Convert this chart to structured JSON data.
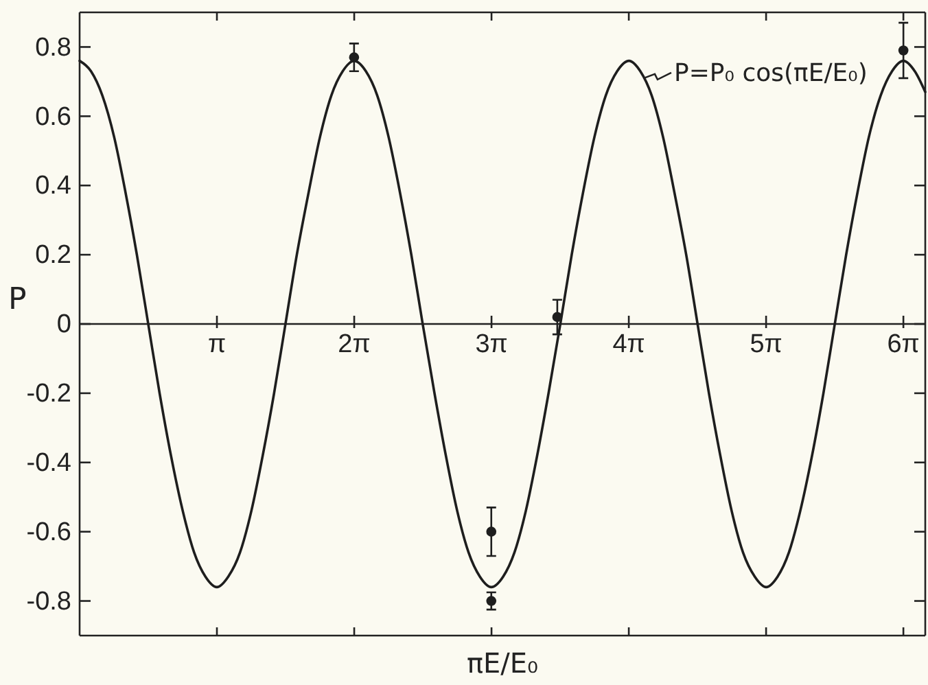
{
  "chart_data": {
    "type": "line",
    "xlabel": "πE/E₀",
    "ylabel": "P",
    "xlim": [
      0,
      19.35
    ],
    "ylim": [
      -0.9,
      0.9
    ],
    "xticks": [
      {
        "value": 3.1416,
        "label": "π"
      },
      {
        "value": 6.2832,
        "label": "2π"
      },
      {
        "value": 9.4248,
        "label": "3π"
      },
      {
        "value": 12.5664,
        "label": "4π"
      },
      {
        "value": 15.708,
        "label": "5π"
      },
      {
        "value": 18.8496,
        "label": "6π"
      }
    ],
    "yticks": [
      -0.8,
      -0.6,
      -0.4,
      -0.2,
      0,
      0.2,
      0.4,
      0.6,
      0.8
    ],
    "annotations": [
      {
        "text": "P=P₀ cos(πE/E₀)",
        "x": 12.91,
        "y": 0.71
      }
    ],
    "series": [
      {
        "color": "#1e1e1e",
        "marker": "none",
        "line_style": "solid",
        "x": [
          0,
          0.26,
          0.52,
          0.79,
          1.05,
          1.31,
          1.57,
          1.83,
          2.09,
          2.36,
          2.62,
          2.88,
          3.14,
          3.4,
          3.67,
          3.93,
          4.19,
          4.45,
          4.71,
          4.97,
          5.24,
          5.5,
          5.76,
          6.02,
          6.28,
          6.55,
          6.81,
          7.07,
          7.33,
          7.59,
          7.85,
          8.12,
          8.38,
          8.64,
          8.9,
          9.16,
          9.42,
          9.69,
          9.95,
          10.21,
          10.47,
          10.73,
          11.0,
          11.26,
          11.52,
          11.78,
          12.04,
          12.3,
          12.57,
          12.83,
          13.09,
          13.35,
          13.61,
          13.88,
          14.14,
          14.4,
          14.66,
          14.92,
          15.18,
          15.45,
          15.71,
          15.97,
          16.23,
          16.49,
          16.76,
          17.02,
          17.28,
          17.54,
          17.8,
          18.06,
          18.33,
          18.59,
          18.85,
          19.11,
          19.35
        ],
        "values": [
          0.76,
          0.73,
          0.66,
          0.54,
          0.38,
          0.2,
          0,
          -0.2,
          -0.38,
          -0.54,
          -0.66,
          -0.73,
          -0.76,
          -0.73,
          -0.66,
          -0.54,
          -0.38,
          -0.2,
          0,
          0.2,
          0.38,
          0.54,
          0.66,
          0.73,
          0.76,
          0.73,
          0.66,
          0.54,
          0.38,
          0.2,
          0,
          -0.2,
          -0.38,
          -0.54,
          -0.66,
          -0.73,
          -0.76,
          -0.73,
          -0.66,
          -0.54,
          -0.38,
          -0.2,
          0,
          0.2,
          0.38,
          0.54,
          0.66,
          0.73,
          0.76,
          0.73,
          0.66,
          0.54,
          0.38,
          0.2,
          0,
          -0.2,
          -0.38,
          -0.54,
          -0.66,
          -0.73,
          -0.76,
          -0.73,
          -0.66,
          -0.54,
          -0.38,
          -0.2,
          0,
          0.2,
          0.38,
          0.54,
          0.66,
          0.73,
          0.76,
          0.73,
          0.67
        ]
      },
      {
        "type": "scatter",
        "color": "#1e1e1e",
        "marker": "circle",
        "x": [
          6.28,
          9.42,
          9.42,
          10.93,
          18.85
        ],
        "values": [
          0.77,
          -0.6,
          -0.8,
          0.02,
          0.79
        ],
        "errors": [
          0.04,
          0.07,
          0.025,
          0.05,
          0.08
        ]
      }
    ]
  }
}
